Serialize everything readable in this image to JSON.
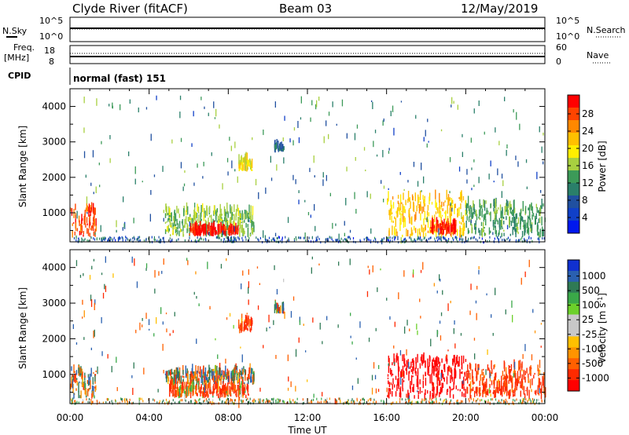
{
  "header": {
    "radar": "Clyde River (fitACF)",
    "beam": "Beam 03",
    "date": "12/May/2019"
  },
  "strips": {
    "nsky_label": "N.Sky",
    "nsearch_label": "N.Search",
    "freq_label": "Freq.",
    "freq_unit": "[MHz]",
    "nave_label": "Nave",
    "cpid_label": "CPID",
    "cpid_value": "normal (fast) 151",
    "noise_left_ticks": [
      "10^5",
      "10^0"
    ],
    "noise_right_ticks": [
      "10^5",
      "10^0"
    ],
    "freq_left_ticks": [
      "18",
      "8"
    ],
    "freq_right_ticks": [
      "60",
      "0"
    ]
  },
  "xaxis": {
    "label": "Time UT",
    "ticks": [
      "00:00",
      "04:00",
      "08:00",
      "12:00",
      "16:00",
      "20:00",
      "00:00"
    ]
  },
  "power_panel": {
    "ylabel": "Slant Range [km]",
    "yticks": [
      "4000",
      "3000",
      "2000",
      "1000"
    ],
    "cbar_label": "Power [dB]",
    "cbar_ticks": [
      "28",
      "24",
      "20",
      "16",
      "12",
      "8",
      "4"
    ],
    "cbar_colors": [
      "#ff0000",
      "#ff4400",
      "#ff8800",
      "#ffc000",
      "#ffee00",
      "#a8d040",
      "#3c9a58",
      "#2a7f6a",
      "#2050a0",
      "#1040c8",
      "#0018ee"
    ]
  },
  "velocity_panel": {
    "ylabel": "Slant Range [km]",
    "yticks": [
      "4000",
      "3000",
      "2000",
      "1000"
    ],
    "cbar_label": "Velocity [m s",
    "cbar_label_sup": "-1",
    "cbar_label_end": "]",
    "cbar_ticks": [
      "1000",
      "500",
      "100",
      "25",
      "-25",
      "-100",
      "-500",
      "-1000"
    ],
    "cbar_colors": [
      "#1030d0",
      "#2a60b0",
      "#2f7a55",
      "#3aa848",
      "#6cd02a",
      "#c8c8c8",
      "#c8c8c8",
      "#ffc000",
      "#ff9400",
      "#ff6000",
      "#ff2a00",
      "#ff0000"
    ]
  },
  "chart_data": [
    {
      "type": "heatmap",
      "title": "Clyde River (fitACF) Beam 03 12/May/2019",
      "quantity": "Power",
      "xlabel": "Time UT",
      "ylabel": "Slant Range [km]",
      "x_range_hours": [
        0,
        24
      ],
      "y_range_km": [
        180,
        4500
      ],
      "colorbar": {
        "label": "Power [dB]",
        "range": [
          0,
          30
        ],
        "ticks": [
          4,
          8,
          12,
          16,
          20,
          24,
          28
        ]
      },
      "regions": [
        {
          "t": [
            0.0,
            1.3
          ],
          "r": [
            300,
            1100
          ],
          "db": 26
        },
        {
          "t": [
            4.8,
            9.3
          ],
          "r": [
            300,
            1050
          ],
          "db": 14
        },
        {
          "t": [
            6.0,
            8.5
          ],
          "r": [
            330,
            520
          ],
          "db": 28
        },
        {
          "t": [
            8.5,
            9.2
          ],
          "r": [
            2150,
            2450
          ],
          "db": 18
        },
        {
          "t": [
            10.3,
            10.8
          ],
          "r": [
            2700,
            2850
          ],
          "db": 8
        },
        {
          "t": [
            16.0,
            20.0
          ],
          "r": [
            300,
            1400
          ],
          "db": 20
        },
        {
          "t": [
            18.2,
            19.5
          ],
          "r": [
            350,
            650
          ],
          "db": 28
        },
        {
          "t": [
            20.0,
            24.0
          ],
          "r": [
            300,
            1200
          ],
          "db": 12
        }
      ]
    },
    {
      "type": "heatmap",
      "title": "Clyde River (fitACF) Beam 03 12/May/2019",
      "quantity": "Velocity",
      "xlabel": "Time UT",
      "ylabel": "Slant Range [km]",
      "x_range_hours": [
        0,
        24
      ],
      "y_range_km": [
        180,
        4500
      ],
      "colorbar": {
        "label": "Velocity [m s-1]",
        "range": [
          -1000,
          1000
        ],
        "ticks": [
          1000,
          500,
          100,
          25,
          -25,
          -100,
          -500,
          -1000
        ]
      },
      "regions": [
        {
          "t": [
            0.0,
            1.3
          ],
          "r": [
            300,
            1100
          ],
          "v": 0
        },
        {
          "t": [
            4.8,
            9.3
          ],
          "r": [
            700,
            1050
          ],
          "v": 0
        },
        {
          "t": [
            5.0,
            9.0
          ],
          "r": [
            330,
            600
          ],
          "v": -120
        },
        {
          "t": [
            8.5,
            9.2
          ],
          "r": [
            2150,
            2450
          ],
          "v": -150
        },
        {
          "t": [
            10.3,
            10.8
          ],
          "r": [
            2700,
            2850
          ],
          "v": 0
        },
        {
          "t": [
            16.0,
            20.0
          ],
          "r": [
            300,
            1400
          ],
          "v": -450
        },
        {
          "t": [
            20.0,
            24.0
          ],
          "r": [
            300,
            1200
          ],
          "v": -150
        }
      ]
    }
  ]
}
